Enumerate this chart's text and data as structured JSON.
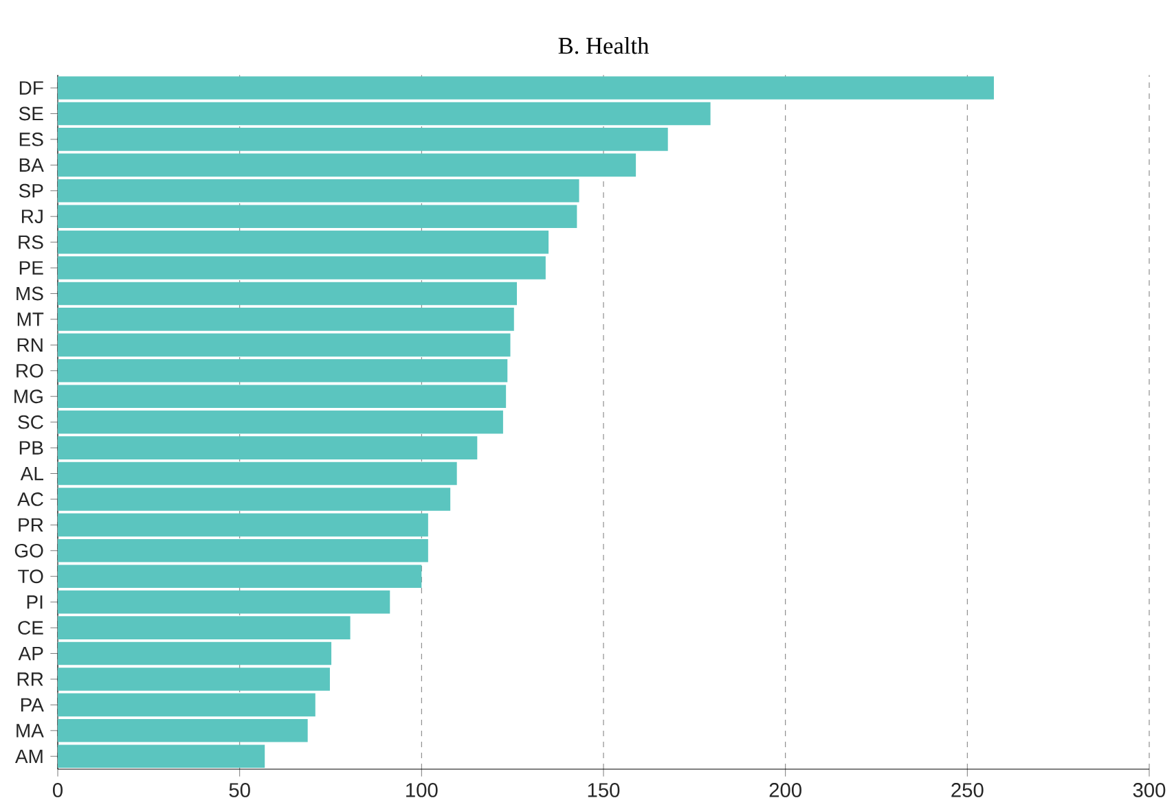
{
  "chart_data": {
    "type": "bar",
    "orientation": "horizontal",
    "title": "B. Health",
    "color": "#5bc5bf",
    "grid": "x",
    "categories": [
      "DF",
      "SE",
      "ES",
      "BA",
      "SP",
      "RJ",
      "RS",
      "PE",
      "MS",
      "MT",
      "RN",
      "RO",
      "MG",
      "SC",
      "PB",
      "AL",
      "AC",
      "PR",
      "GO",
      "TO",
      "PI",
      "CE",
      "AP",
      "RR",
      "PA",
      "MA",
      "AM"
    ],
    "values": [
      257.3,
      179.4,
      167.7,
      158.9,
      143.3,
      142.7,
      134.9,
      134.1,
      126.2,
      125.4,
      124.4,
      123.6,
      123.2,
      122.4,
      115.3,
      109.7,
      107.9,
      101.8,
      101.8,
      100,
      91.3,
      80.4,
      75.2,
      74.8,
      70.8,
      68.7,
      56.9
    ],
    "xlim": [
      0,
      300
    ],
    "xticks": [
      0,
      50,
      100,
      150,
      200,
      250,
      300
    ]
  }
}
